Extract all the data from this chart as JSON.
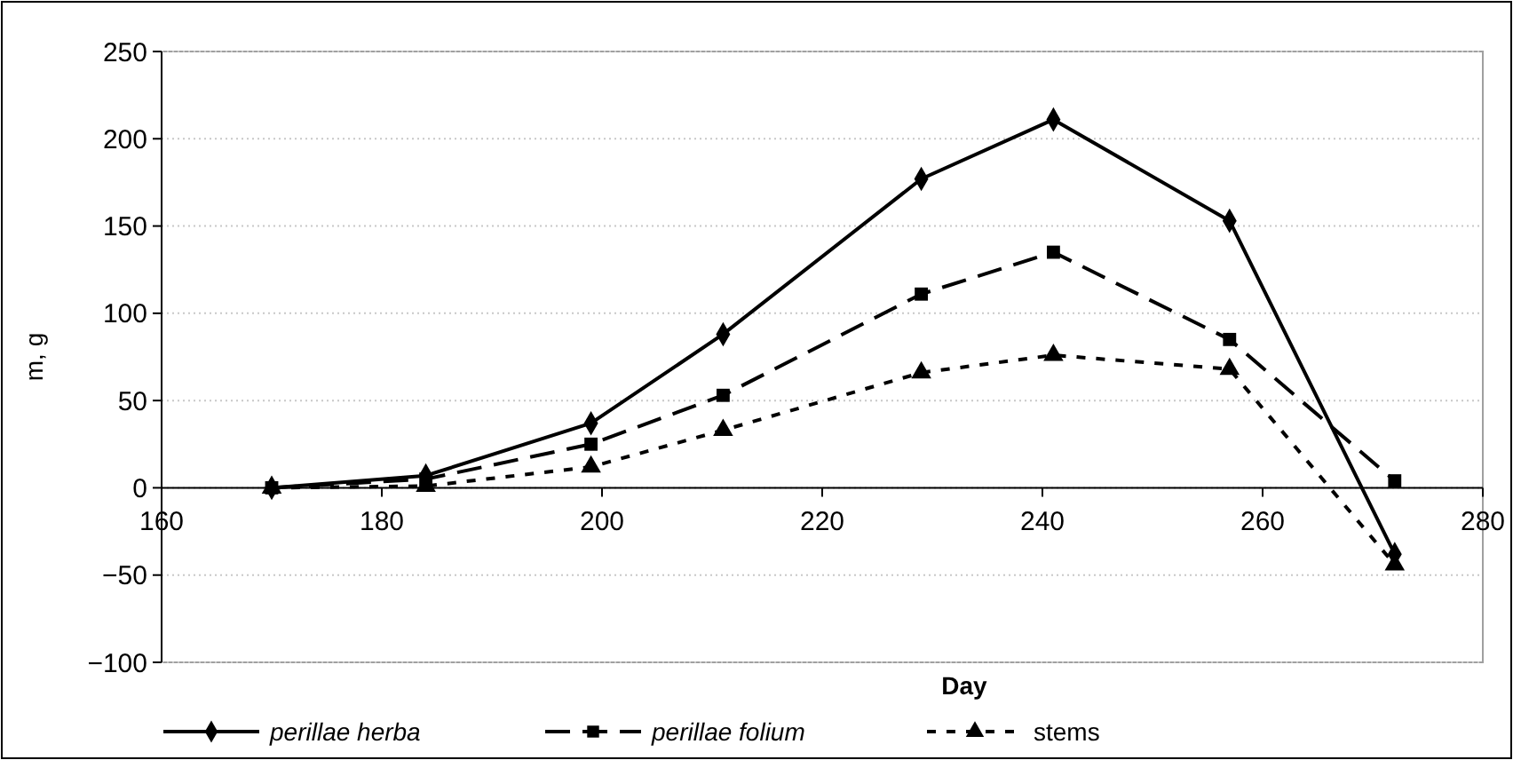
{
  "chart_data": {
    "type": "line",
    "xlabel": "Day",
    "ylabel": "m, g",
    "x": [
      170,
      184,
      199,
      211,
      229,
      241,
      257,
      272
    ],
    "series": [
      {
        "name": "perillae herba",
        "color": "#000000",
        "marker": "diamond",
        "line_style": "solid",
        "values": [
          0,
          7,
          37,
          88,
          177,
          211,
          153,
          -38
        ]
      },
      {
        "name": "perillae folium",
        "color": "#000000",
        "marker": "square",
        "line_style": "dashed",
        "values": [
          0,
          5,
          25,
          53,
          111,
          135,
          85,
          4
        ]
      },
      {
        "name": "stems",
        "color": "#000000",
        "marker": "triangle",
        "line_style": "dotted",
        "values": [
          0,
          1,
          12,
          33,
          66,
          76,
          68,
          -44
        ]
      }
    ],
    "xlim": [
      160,
      280
    ],
    "xticks": [
      160,
      180,
      200,
      220,
      240,
      260,
      280
    ],
    "ylim": [
      -100,
      250
    ],
    "yticks": [
      -100,
      -50,
      0,
      50,
      100,
      150,
      200,
      250
    ],
    "grid": "y",
    "legend": "bottom"
  }
}
